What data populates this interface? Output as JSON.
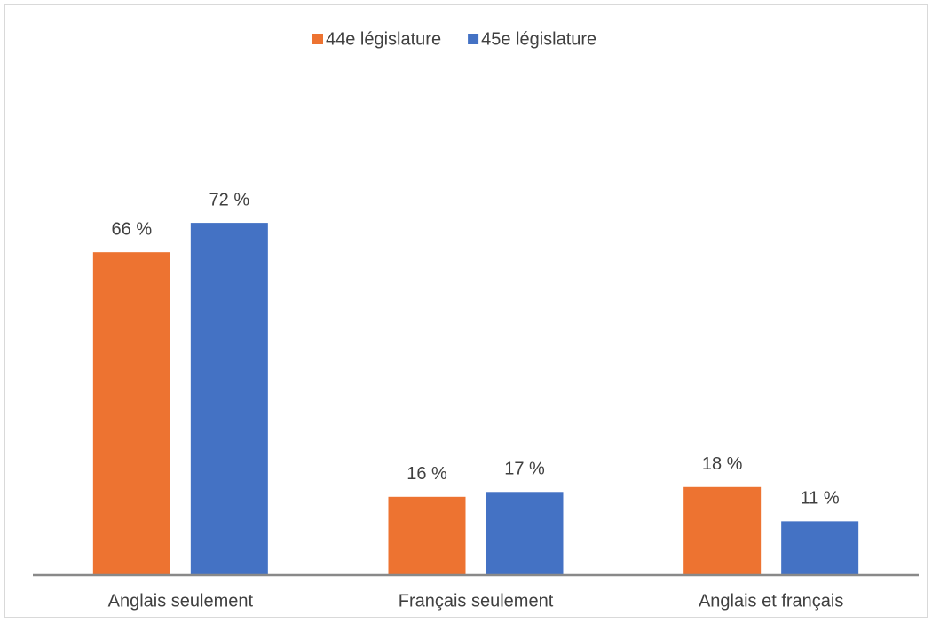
{
  "chart_data": {
    "type": "bar",
    "categories": [
      "Anglais seulement",
      "Français seulement",
      "Anglais et français"
    ],
    "series": [
      {
        "name": "44e législature",
        "color": "#ed7331",
        "values": [
          66,
          16,
          18
        ],
        "value_labels": [
          "66 %",
          "16 %",
          "18 %"
        ]
      },
      {
        "name": "45e législature",
        "color": "#4472c4",
        "values": [
          72,
          17,
          11
        ],
        "value_labels": [
          "72 %",
          "17 %",
          "11 %"
        ]
      }
    ],
    "ylim": [
      0,
      80
    ],
    "legend": "top"
  }
}
